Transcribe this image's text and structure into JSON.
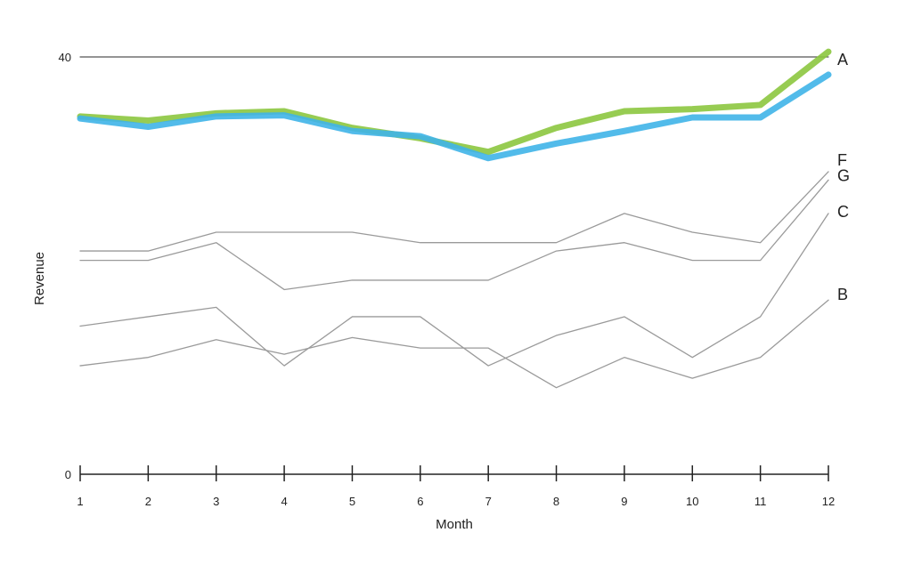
{
  "chart_data": {
    "type": "line",
    "title": "",
    "xlabel": "Month",
    "ylabel": "Revenue",
    "x": [
      1,
      2,
      3,
      4,
      5,
      6,
      7,
      8,
      9,
      10,
      11,
      12
    ],
    "ylim": [
      0,
      40
    ],
    "yticks": [
      0,
      40
    ],
    "grid": false,
    "legend": "none",
    "series": [
      {
        "name": "A",
        "color": "#555555",
        "values": [
          40,
          40,
          40,
          40,
          40,
          40,
          40,
          40,
          40,
          40,
          40,
          40
        ]
      },
      {
        "name": "",
        "color": "#8cc63f",
        "values": [
          34.3,
          33.9,
          34.6,
          34.8,
          33.2,
          32.2,
          30.9,
          33.2,
          34.8,
          35.0,
          35.4,
          40.5
        ]
      },
      {
        "name": "",
        "color": "#3fb4e8",
        "values": [
          34.1,
          33.3,
          34.3,
          34.4,
          32.9,
          32.4,
          30.3,
          31.7,
          32.9,
          34.2,
          34.2,
          38.3
        ]
      },
      {
        "name": "F",
        "color": "#9a9a9a",
        "values": [
          21.4,
          21.4,
          23.2,
          23.2,
          23.2,
          22.2,
          22.2,
          22.2,
          25.0,
          23.2,
          22.2,
          29.0
        ]
      },
      {
        "name": "G",
        "color": "#9a9a9a",
        "values": [
          20.5,
          20.5,
          22.2,
          17.7,
          18.6,
          18.6,
          18.6,
          21.4,
          22.2,
          20.5,
          20.5,
          28.2
        ]
      },
      {
        "name": "C",
        "color": "#9a9a9a",
        "values": [
          14.2,
          15.1,
          16.0,
          10.4,
          15.1,
          15.1,
          10.4,
          13.3,
          15.1,
          11.2,
          15.1,
          25.0
        ]
      },
      {
        "name": "B",
        "color": "#9a9a9a",
        "values": [
          10.4,
          11.2,
          12.9,
          11.5,
          13.1,
          12.1,
          12.1,
          8.3,
          11.2,
          9.2,
          11.2,
          16.7
        ]
      }
    ]
  }
}
